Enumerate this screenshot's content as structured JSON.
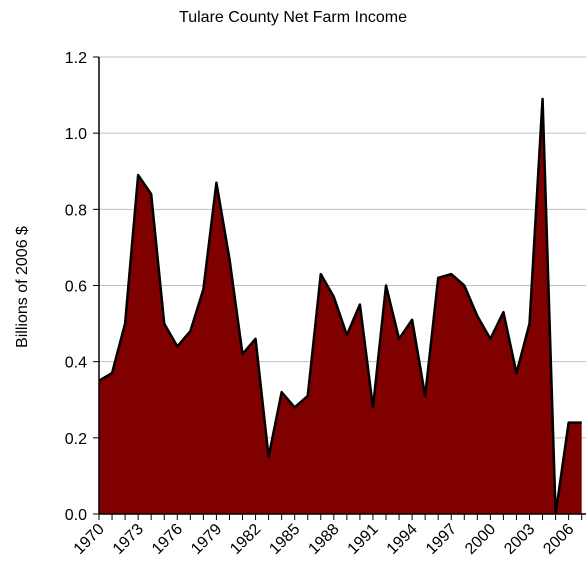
{
  "chart_data": {
    "type": "area",
    "title": "Tulare County Net Farm Income",
    "xlabel": "",
    "ylabel": "Billions of 2006 $",
    "ylim": [
      0,
      1.2
    ],
    "yticks": [
      "0.0",
      "0.2",
      "0.4",
      "0.6",
      "0.8",
      "1.0",
      "1.2"
    ],
    "xticks": [
      "1970",
      "1973",
      "1976",
      "1979",
      "1982",
      "1985",
      "1988",
      "1991",
      "1994",
      "1997",
      "2000",
      "2003",
      "2006"
    ],
    "grid": true,
    "colors": {
      "fill": "#800000",
      "stroke": "#000000",
      "grid": "#c0c0c0"
    },
    "series": [
      {
        "x": [
          1970,
          1971,
          1972,
          1973,
          1974,
          1975,
          1976,
          1977,
          1978,
          1979,
          1980,
          1981,
          1982,
          1983,
          1984,
          1985,
          1986,
          1987,
          1988,
          1989,
          1990,
          1991,
          1992,
          1993,
          1994,
          1995,
          1996,
          1997,
          1998,
          1999,
          2000,
          2001,
          2002,
          2003,
          2004,
          2005,
          2006,
          2007
        ],
        "values": [
          0.35,
          0.37,
          0.5,
          0.89,
          0.84,
          0.5,
          0.44,
          0.48,
          0.59,
          0.87,
          0.67,
          0.42,
          0.46,
          0.15,
          0.32,
          0.28,
          0.31,
          0.63,
          0.57,
          0.47,
          0.55,
          0.28,
          0.6,
          0.46,
          0.51,
          0.31,
          0.62,
          0.63,
          0.6,
          0.52,
          0.46,
          0.53,
          0.37,
          0.5,
          1.09,
          0.0,
          0.24,
          0.24
        ]
      }
    ]
  }
}
